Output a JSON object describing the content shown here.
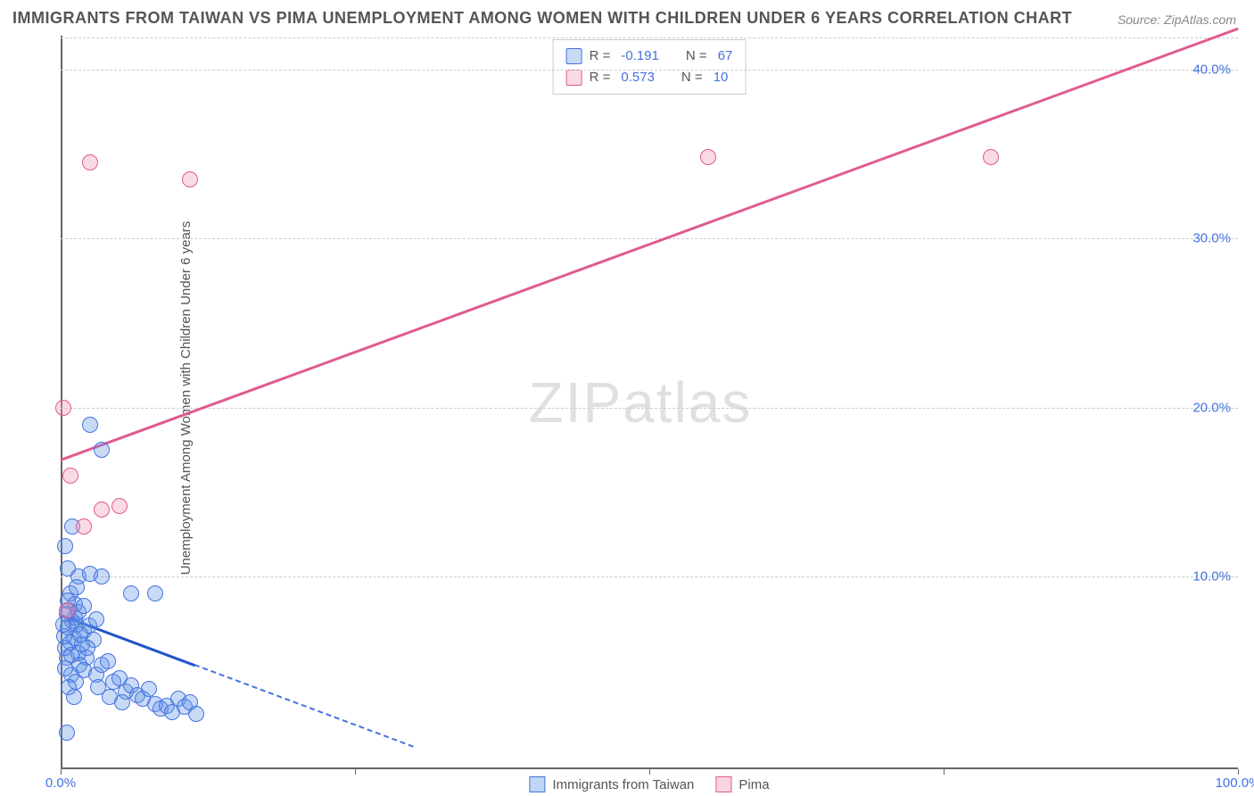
{
  "title": "IMMIGRANTS FROM TAIWAN VS PIMA UNEMPLOYMENT AMONG WOMEN WITH CHILDREN UNDER 6 YEARS CORRELATION CHART",
  "source": "Source: ZipAtlas.com",
  "y_axis_label": "Unemployment Among Women with Children Under 6 years",
  "watermark": "ZIPatlas",
  "chart": {
    "type": "scatter",
    "xlim": [
      0,
      100
    ],
    "ylim": [
      0,
      42
    ],
    "x_ticks": [
      0,
      25,
      50,
      75,
      100
    ],
    "x_tick_labels": [
      "0.0%",
      "",
      "",
      "",
      "100.0%"
    ],
    "y_ticks": [
      10,
      20,
      30,
      40
    ],
    "y_tick_labels": [
      "10.0%",
      "20.0%",
      "30.0%",
      "40.0%"
    ],
    "grid_color": "#cccccc",
    "axis_color": "#666666",
    "label_color": "#4472e0",
    "background_color": "#ffffff",
    "marker_radius": 9
  },
  "series": {
    "blue": {
      "label": "Immigrants from Taiwan",
      "color_fill": "rgba(100,150,230,0.35)",
      "color_stroke": "#4472e0",
      "R": "-0.191",
      "N": "67",
      "trend": {
        "x1": 0,
        "y1": 7.8,
        "x2": 30,
        "y2": 0
      },
      "points": [
        [
          0.5,
          5.2
        ],
        [
          0.8,
          6.1
        ],
        [
          0.6,
          7.0
        ],
        [
          1.0,
          7.4
        ],
        [
          1.2,
          7.6
        ],
        [
          0.7,
          8.0
        ],
        [
          1.4,
          7.2
        ],
        [
          1.1,
          6.4
        ],
        [
          0.4,
          5.8
        ],
        [
          1.5,
          5.5
        ],
        [
          1.8,
          6.0
        ],
        [
          2.0,
          6.8
        ],
        [
          2.2,
          5.2
        ],
        [
          1.6,
          4.8
        ],
        [
          2.4,
          7.1
        ],
        [
          2.8,
          6.3
        ],
        [
          0.9,
          4.2
        ],
        [
          1.3,
          3.8
        ],
        [
          2.0,
          4.5
        ],
        [
          3.0,
          4.2
        ],
        [
          3.5,
          4.8
        ],
        [
          4.0,
          5.0
        ],
        [
          3.2,
          3.5
        ],
        [
          4.5,
          3.8
        ],
        [
          5.0,
          4.0
        ],
        [
          4.2,
          2.9
        ],
        [
          5.5,
          3.2
        ],
        [
          6.0,
          3.6
        ],
        [
          5.2,
          2.6
        ],
        [
          6.5,
          3.0
        ],
        [
          7.0,
          2.8
        ],
        [
          7.5,
          3.4
        ],
        [
          8.0,
          2.5
        ],
        [
          8.5,
          2.2
        ],
        [
          9.0,
          2.4
        ],
        [
          9.5,
          2.0
        ],
        [
          10.0,
          2.8
        ],
        [
          10.5,
          2.3
        ],
        [
          11.0,
          2.6
        ],
        [
          11.5,
          1.9
        ],
        [
          0.8,
          9.0
        ],
        [
          1.5,
          10.0
        ],
        [
          2.5,
          10.2
        ],
        [
          3.5,
          10.0
        ],
        [
          6.0,
          9.0
        ],
        [
          8.0,
          9.0
        ],
        [
          0.6,
          10.5
        ],
        [
          0.4,
          11.8
        ],
        [
          1.0,
          13.0
        ],
        [
          0.5,
          7.8
        ],
        [
          1.2,
          8.4
        ],
        [
          0.3,
          6.5
        ],
        [
          2.5,
          19.0
        ],
        [
          3.5,
          17.5
        ],
        [
          0.5,
          0.8
        ],
        [
          1.5,
          7.9
        ],
        [
          2.0,
          8.3
        ],
        [
          3.0,
          7.5
        ],
        [
          0.7,
          3.5
        ],
        [
          1.1,
          2.9
        ],
        [
          0.4,
          4.6
        ],
        [
          0.9,
          5.4
        ],
        [
          1.7,
          6.6
        ],
        [
          2.3,
          5.8
        ],
        [
          0.2,
          7.2
        ],
        [
          0.6,
          8.6
        ],
        [
          1.4,
          9.4
        ]
      ]
    },
    "pink": {
      "label": "Pima",
      "color_fill": "rgba(240,150,180,0.35)",
      "color_stroke": "#e05a92",
      "R": "0.573",
      "N": "10",
      "trend": {
        "x1": 0,
        "y1": 17.0,
        "x2": 100,
        "y2": 42.5
      },
      "points": [
        [
          0.2,
          20.0
        ],
        [
          0.8,
          16.0
        ],
        [
          2.0,
          13.0
        ],
        [
          3.5,
          14.0
        ],
        [
          5.0,
          14.2
        ],
        [
          2.5,
          34.5
        ],
        [
          11.0,
          33.5
        ],
        [
          55.0,
          34.8
        ],
        [
          79.0,
          34.8
        ],
        [
          0.5,
          8.0
        ]
      ]
    }
  },
  "legend_top": [
    {
      "series": "blue",
      "R_label": "R =",
      "N_label": "N ="
    },
    {
      "series": "pink",
      "R_label": "R =",
      "N_label": "N ="
    }
  ]
}
